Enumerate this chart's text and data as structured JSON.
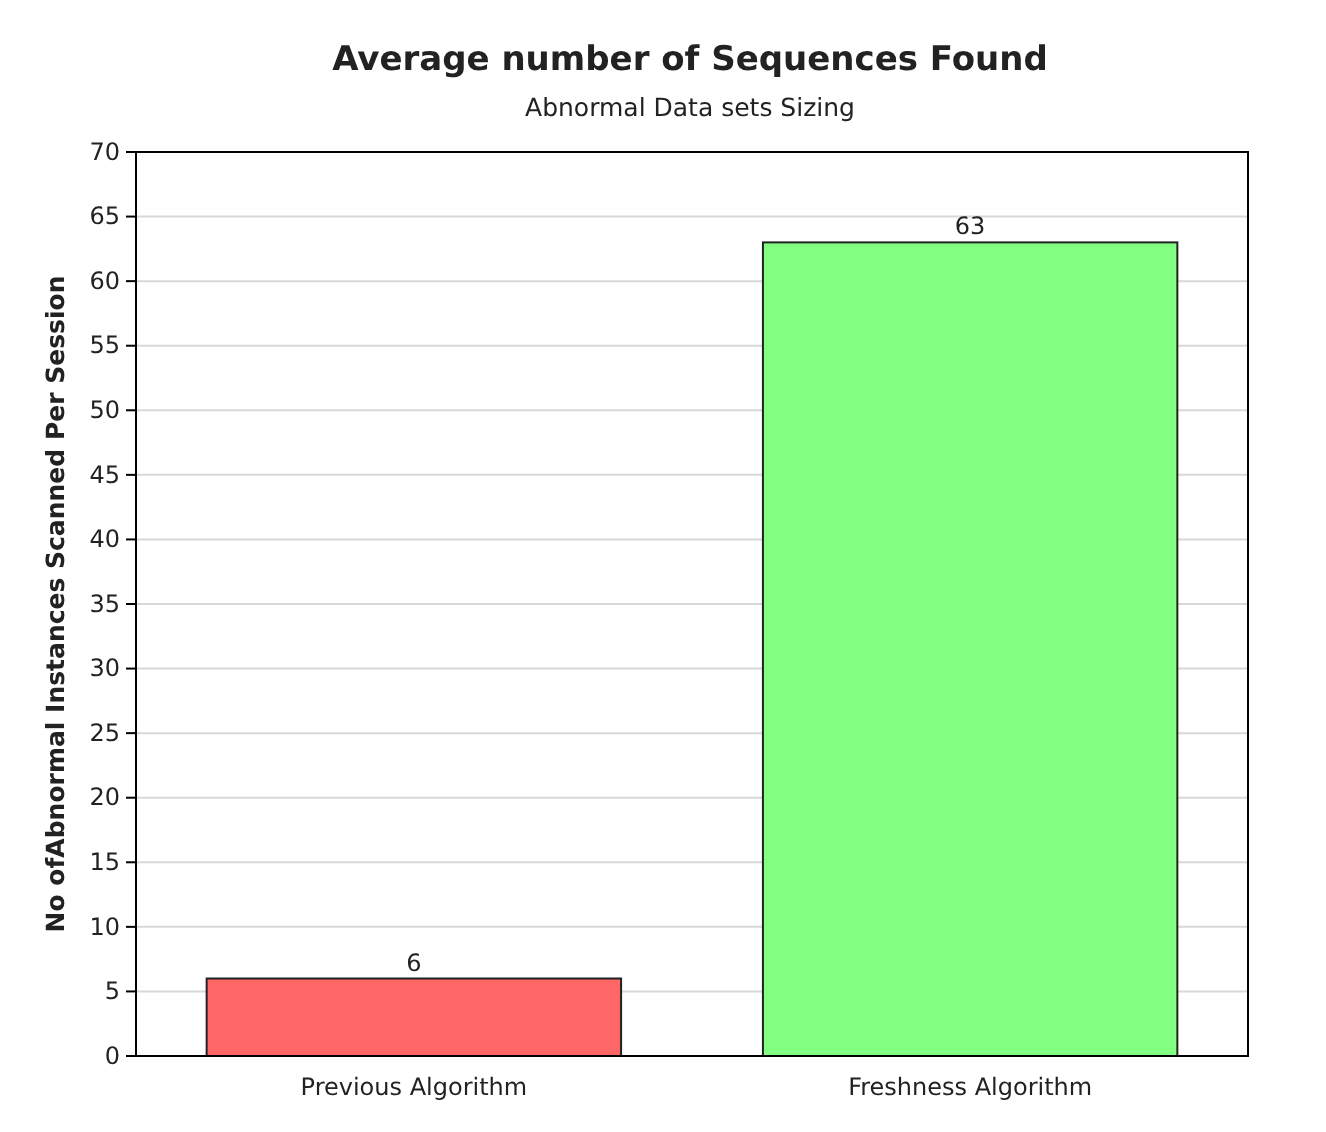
{
  "chart_data": {
    "type": "bar",
    "title": "Average number of Sequences Found",
    "subtitle": "Abnormal Data sets Sizing",
    "ylabel": "No ofAbnormal Instances Scanned Per Session",
    "categories": [
      "Previous Algorithm",
      "Freshness Algorithm"
    ],
    "values": [
      6,
      63
    ],
    "colors": [
      "#ff6666",
      "#80ff80"
    ],
    "ylim": [
      0,
      70
    ],
    "yticks": [
      0,
      5,
      10,
      15,
      20,
      25,
      30,
      35,
      40,
      45,
      50,
      55,
      60,
      65,
      70
    ],
    "grid": "y",
    "data_labels": true
  }
}
